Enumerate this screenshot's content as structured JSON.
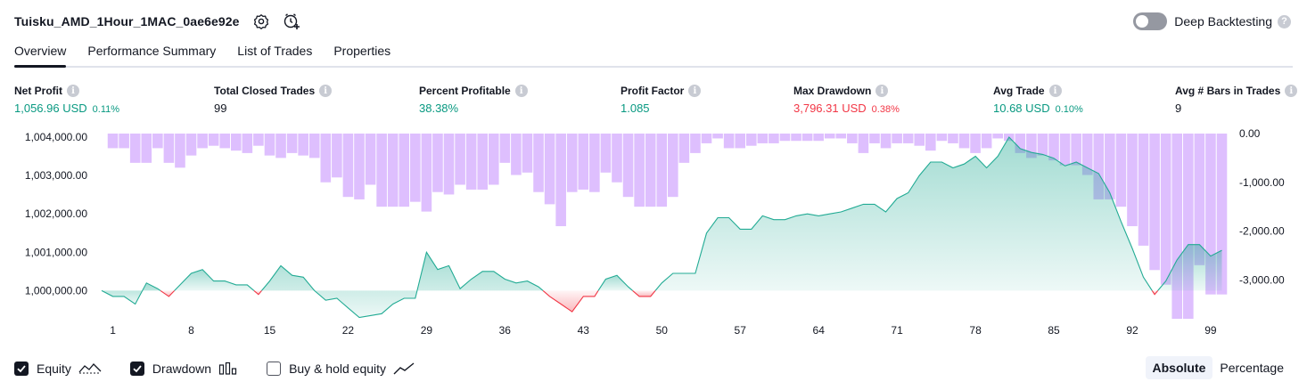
{
  "header": {
    "title": "Tuisku_AMD_1Hour_1MAC_0ae6e92e",
    "icons": [
      "settings-icon",
      "add-alert-icon"
    ],
    "deep_backtesting_label": "Deep Backtesting",
    "deep_backtesting_enabled": false,
    "help_icon": "question-mark-icon"
  },
  "tabs": [
    {
      "label": "Overview",
      "active": true
    },
    {
      "label": "Performance Summary",
      "active": false
    },
    {
      "label": "List of Trades",
      "active": false
    },
    {
      "label": "Properties",
      "active": false
    }
  ],
  "metrics": [
    {
      "label": "Net Profit",
      "value": "1,056.96 USD",
      "pct": "0.11%",
      "tone": "pos"
    },
    {
      "label": "Total Closed Trades",
      "value": "99",
      "pct": "",
      "tone": "neu"
    },
    {
      "label": "Percent Profitable",
      "value": "38.38%",
      "pct": "",
      "tone": "pos"
    },
    {
      "label": "Profit Factor",
      "value": "1.085",
      "pct": "",
      "tone": "pos"
    },
    {
      "label": "Max Drawdown",
      "value": "3,796.31 USD",
      "pct": "0.38%",
      "tone": "neg"
    },
    {
      "label": "Avg Trade",
      "value": "10.68 USD",
      "pct": "0.10%",
      "tone": "pos"
    },
    {
      "label": "Avg # Bars in Trades",
      "value": "9",
      "pct": "",
      "tone": "neu"
    }
  ],
  "legend": {
    "equity_label": "Equity",
    "equity_checked": true,
    "drawdown_label": "Drawdown",
    "drawdown_checked": true,
    "buyhold_label": "Buy & hold equity",
    "buyhold_checked": false
  },
  "modes": {
    "absolute": "Absolute",
    "percentage": "Percentage",
    "active": "absolute"
  },
  "colors": {
    "equity_line_pos": "#22ab94",
    "equity_line_neg": "#f23645",
    "drawdown_bar": "#d8b4fe",
    "text_positive": "#089981",
    "text_negative": "#f23645"
  },
  "chart_data": {
    "type": "line",
    "baseline": 1000000,
    "x_ticks": [
      1,
      8,
      15,
      22,
      29,
      36,
      43,
      50,
      57,
      64,
      71,
      78,
      85,
      92,
      99
    ],
    "x_range": [
      1,
      100
    ],
    "left_axis": {
      "ticks": [
        "1,000,000.00",
        "1,001,000.00",
        "1,002,000.00",
        "1,003,000.00",
        "1,004,000.00"
      ],
      "range": [
        999300,
        1004000
      ]
    },
    "right_axis": {
      "ticks": [
        "0.00",
        "-1,000.00",
        "-2,000.00",
        "-3,000.00"
      ],
      "range": [
        -3800,
        0
      ]
    },
    "series": [
      {
        "type": "line",
        "values": [
          1000000,
          999850,
          999850,
          999650,
          1000200,
          1000050,
          999850,
          1000150,
          1000450,
          1000550,
          1000250,
          1000250,
          1000150,
          1000150,
          999900,
          1000250,
          1000650,
          1000400,
          1000350,
          1000000,
          999750,
          999800,
          999550,
          999300,
          999350,
          999400,
          999650,
          999800,
          999800,
          1001000,
          1000550,
          1000650,
          1000050,
          1000300,
          1000500,
          1000500,
          1000300,
          1000200,
          1000250,
          1000100,
          999850,
          999650,
          999450,
          999850,
          999850,
          1000300,
          1000400,
          1000100,
          999850,
          999850,
          1000200,
          1000450,
          1000450,
          1000450,
          1001500,
          1001900,
          1001900,
          1001600,
          1001600,
          1001950,
          1001850,
          1001850,
          1001950,
          1002000,
          1001950,
          1002000,
          1002050,
          1002150,
          1002250,
          1002250,
          1002050,
          1002400,
          1002550,
          1003000,
          1003350,
          1003350,
          1003200,
          1003300,
          1003500,
          1003200,
          1003500,
          1004000,
          1003700,
          1003600,
          1003550,
          1003450,
          1003250,
          1003350,
          1003200,
          1003050,
          1002550,
          1001800,
          1001100,
          1000350,
          999900,
          1000250,
          1000800,
          1001200,
          1001200,
          1000900,
          1001050
        ],
        "x": [
          0,
          1,
          2,
          3,
          4,
          5,
          6,
          7,
          8,
          9,
          10,
          11,
          12,
          13,
          14,
          15,
          16,
          17,
          18,
          19,
          20,
          21,
          22,
          23,
          24,
          25,
          26,
          27,
          28,
          29,
          30,
          31,
          32,
          33,
          34,
          35,
          36,
          37,
          38,
          39,
          40,
          41,
          42,
          43,
          44,
          45,
          46,
          47,
          48,
          49,
          50,
          51,
          52,
          53,
          54,
          55,
          56,
          57,
          58,
          59,
          60,
          61,
          62,
          63,
          64,
          65,
          66,
          67,
          68,
          69,
          70,
          71,
          72,
          73,
          74,
          75,
          76,
          77,
          78,
          79,
          80,
          81,
          82,
          83,
          84,
          85,
          86,
          87,
          88,
          89,
          90,
          91,
          92,
          93,
          94,
          95,
          96,
          97,
          98,
          99,
          100
        ]
      },
      {
        "type": "bar",
        "values": [
          -300,
          -300,
          -600,
          -600,
          -300,
          -600,
          -700,
          -450,
          -300,
          -250,
          -300,
          -350,
          -400,
          -250,
          -450,
          -500,
          -400,
          -450,
          -500,
          -1000,
          -900,
          -1300,
          -1350,
          -1050,
          -1500,
          -1500,
          -1500,
          -1400,
          -1600,
          -1200,
          -1250,
          -1050,
          -1150,
          -1150,
          -1050,
          -600,
          -850,
          -800,
          -1200,
          -1450,
          -1900,
          -1200,
          -1150,
          -1200,
          -800,
          -1000,
          -1300,
          -1500,
          -1500,
          -1500,
          -1300,
          -600,
          -400,
          -200,
          -100,
          -300,
          -300,
          -250,
          -200,
          -200,
          -150,
          -150,
          -150,
          -150,
          -100,
          -100,
          -200,
          -400,
          -200,
          -300,
          -200,
          -200,
          -250,
          -350,
          -150,
          -200,
          -300,
          -400,
          -300,
          -100,
          -150,
          -400,
          -500,
          -450,
          -550,
          -650,
          -650,
          -850,
          -1350,
          -1350,
          -1500,
          -1900,
          -2300,
          -2800,
          -3100,
          -3800,
          -3800,
          -2700,
          -3300,
          -3300
        ],
        "x": [
          1,
          2,
          3,
          4,
          5,
          6,
          7,
          8,
          9,
          10,
          11,
          12,
          13,
          14,
          15,
          16,
          17,
          18,
          19,
          20,
          21,
          22,
          23,
          24,
          25,
          26,
          27,
          28,
          29,
          30,
          31,
          32,
          33,
          34,
          35,
          36,
          37,
          38,
          39,
          40,
          41,
          42,
          43,
          44,
          45,
          46,
          47,
          48,
          49,
          50,
          51,
          52,
          53,
          54,
          55,
          56,
          57,
          58,
          59,
          60,
          61,
          62,
          63,
          64,
          65,
          66,
          67,
          68,
          69,
          70,
          71,
          72,
          73,
          74,
          75,
          76,
          77,
          78,
          79,
          80,
          81,
          82,
          83,
          84,
          85,
          86,
          87,
          88,
          89,
          90,
          91,
          92,
          93,
          94,
          95,
          96,
          97,
          98,
          99,
          100
        ]
      }
    ]
  }
}
